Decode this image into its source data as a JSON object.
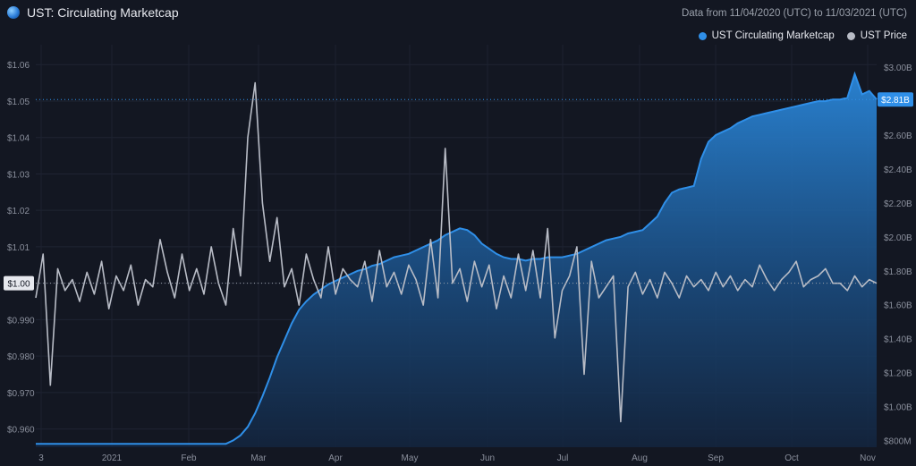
{
  "header": {
    "title": "UST: Circulating Marketcap",
    "date_range": "Data from 11/04/2020 (UTC) to 11/03/2021 (UTC)",
    "logo_icon": "terra-logo-icon"
  },
  "legend": [
    {
      "label": "UST Circulating Marketcap",
      "color": "#2f8fe8"
    },
    {
      "label": "UST Price",
      "color": "#b8bcc6"
    }
  ],
  "chart_data": {
    "type": "area",
    "grid": true,
    "x_tick_labels": [
      "3",
      "2021",
      "Feb",
      "Mar",
      "Apr",
      "May",
      "Jun",
      "Jul",
      "Aug",
      "Sep",
      "Oct",
      "Nov"
    ],
    "left_axis": {
      "series": "UST Price",
      "ylim": [
        0.955,
        1.063
      ],
      "tick_labels": [
        "$1.06",
        "$1.05",
        "$1.04",
        "$1.03",
        "$1.02",
        "$1.01",
        "$1.00",
        "$0.990",
        "$0.980",
        "$0.970",
        "$0.960"
      ],
      "current_label": "$1.00",
      "current_value": 1.0
    },
    "right_axis": {
      "series": "UST Circulating Marketcap",
      "ylim": [
        760,
        3080
      ],
      "unit": "$M",
      "tick_labels": [
        "$3.00B",
        "$2.80B",
        "$2.60B",
        "$2.40B",
        "$2.20B",
        "$2.00B",
        "$1.80B",
        "$1.60B",
        "$1.40B",
        "$1.20B",
        "$1.00B",
        "$800M"
      ],
      "current_label": "$2.81B",
      "current_value": 2810
    },
    "series": [
      {
        "name": "UST Circulating Marketcap",
        "color": "#2f8fe8",
        "x_start": "2020-11-04",
        "x_end": "2021-11-03",
        "values": [
          780,
          780,
          780,
          780,
          780,
          780,
          780,
          780,
          780,
          780,
          780,
          780,
          780,
          780,
          780,
          780,
          780,
          780,
          780,
          780,
          780,
          780,
          780,
          780,
          780,
          780,
          780,
          800,
          830,
          880,
          960,
          1060,
          1170,
          1290,
          1390,
          1490,
          1570,
          1620,
          1660,
          1690,
          1720,
          1740,
          1760,
          1780,
          1800,
          1810,
          1830,
          1840,
          1860,
          1880,
          1890,
          1900,
          1920,
          1940,
          1960,
          1980,
          2010,
          2030,
          2050,
          2040,
          2010,
          1960,
          1930,
          1900,
          1880,
          1870,
          1870,
          1860,
          1870,
          1870,
          1880,
          1880,
          1880,
          1890,
          1900,
          1920,
          1940,
          1960,
          1980,
          1990,
          2000,
          2020,
          2030,
          2040,
          2080,
          2120,
          2200,
          2260,
          2280,
          2290,
          2300,
          2460,
          2560,
          2600,
          2620,
          2640,
          2670,
          2690,
          2710,
          2720,
          2730,
          2740,
          2750,
          2760,
          2770,
          2780,
          2790,
          2800,
          2800,
          2810,
          2810,
          2820,
          2960,
          2840,
          2860,
          2810
        ]
      },
      {
        "name": "UST Price",
        "color": "#b8bcc6",
        "x_start": "2020-11-04",
        "x_end": "2021-11-03",
        "values": [
          0.996,
          1.008,
          0.972,
          1.004,
          0.998,
          1.001,
          0.995,
          1.003,
          0.997,
          1.006,
          0.993,
          1.002,
          0.998,
          1.005,
          0.994,
          1.001,
          0.999,
          1.012,
          1.003,
          0.996,
          1.008,
          0.998,
          1.004,
          0.997,
          1.01,
          1.0,
          0.994,
          1.015,
          1.002,
          1.04,
          1.055,
          1.022,
          1.006,
          1.018,
          0.999,
          1.004,
          0.994,
          1.008,
          1.001,
          0.996,
          1.01,
          0.997,
          1.004,
          1.001,
          0.999,
          1.006,
          0.995,
          1.009,
          0.999,
          1.003,
          0.997,
          1.005,
          1.001,
          0.994,
          1.012,
          0.996,
          1.037,
          1.0,
          1.004,
          0.995,
          1.006,
          0.999,
          1.005,
          0.993,
          1.002,
          0.996,
          1.008,
          0.998,
          1.009,
          0.996,
          1.015,
          0.985,
          0.998,
          1.002,
          1.01,
          0.975,
          1.006,
          0.996,
          0.999,
          1.002,
          0.962,
          0.999,
          1.003,
          0.997,
          1.001,
          0.996,
          1.003,
          1.0,
          0.996,
          1.002,
          0.999,
          1.001,
          0.998,
          1.003,
          0.999,
          1.002,
          0.998,
          1.001,
          0.999,
          1.005,
          1.001,
          0.998,
          1.001,
          1.003,
          1.006,
          0.999,
          1.001,
          1.002,
          1.004,
          1.0,
          1.0,
          0.998,
          1.002,
          0.999,
          1.001,
          1.0
        ]
      }
    ],
    "markers": {
      "current_price_line": 1.0,
      "current_marketcap_line": 2810
    }
  }
}
